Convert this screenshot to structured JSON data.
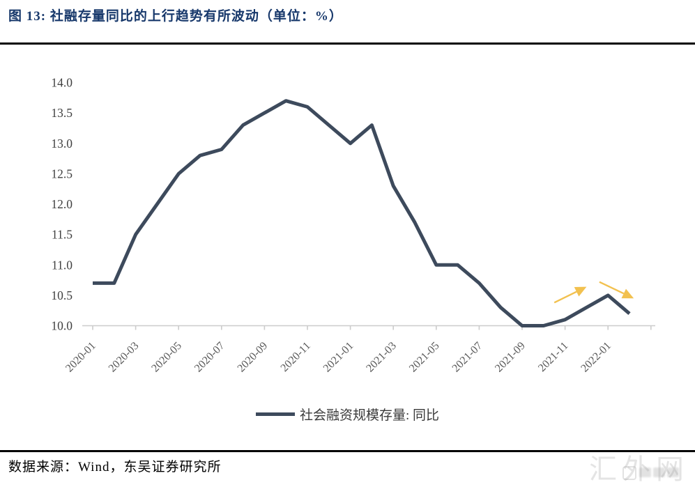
{
  "title": "图 13:  社融存量同比的上行趋势有所波动（单位：%）",
  "chart_data": {
    "type": "line",
    "title": "社融存量同比的上行趋势有所波动",
    "unit": "%",
    "x": [
      "2020-01",
      "2020-02",
      "2020-03",
      "2020-04",
      "2020-05",
      "2020-06",
      "2020-07",
      "2020-08",
      "2020-09",
      "2020-10",
      "2020-11",
      "2020-12",
      "2021-01",
      "2021-02",
      "2021-03",
      "2021-04",
      "2021-05",
      "2021-06",
      "2021-07",
      "2021-08",
      "2021-09",
      "2021-10",
      "2021-11",
      "2021-12",
      "2022-01",
      "2022-02"
    ],
    "series": [
      {
        "name": "社会融资规模存量: 同比",
        "values": [
          10.7,
          10.7,
          11.5,
          12.0,
          12.5,
          12.8,
          12.9,
          13.3,
          13.5,
          13.7,
          13.6,
          13.3,
          13.0,
          13.3,
          12.3,
          11.7,
          11.0,
          11.0,
          10.7,
          10.3,
          10.0,
          10.0,
          10.1,
          10.3,
          10.5,
          10.2
        ]
      }
    ],
    "ylim": [
      10.0,
      14.0
    ],
    "yticks": [
      "14.0",
      "13.5",
      "13.0",
      "12.5",
      "12.0",
      "11.5",
      "11.0",
      "10.5",
      "10.0"
    ],
    "xticks": [
      "2020-01",
      "2020-03",
      "2020-05",
      "2020-07",
      "2020-09",
      "2020-11",
      "2021-01",
      "2021-03",
      "2021-05",
      "2021-07",
      "2021-09",
      "2021-11",
      "2022-01"
    ],
    "grid": false,
    "legend_position": "bottom-center",
    "annotations": [
      {
        "type": "arrow",
        "direction": "up-right",
        "x1": 21.5,
        "y1": 10.38,
        "x2": 23.0,
        "y2": 10.64
      },
      {
        "type": "arrow",
        "direction": "down-right",
        "x1": 23.6,
        "y1": 10.72,
        "x2": 25.2,
        "y2": 10.45
      }
    ]
  },
  "legend": {
    "label": "社会融资规模存量: 同比"
  },
  "source": {
    "text": "数据来源：Wind，东吴证券研究所"
  },
  "watermark": {
    "text": "汇外网",
    "badge_icon": "blurred-logo-badge"
  },
  "colors": {
    "line": "#3d4a5c",
    "arrow": "#f2c14f",
    "title": "#17386b",
    "axis": "#cccccc",
    "tick_label": "#595959",
    "y_label": "#3f3f3f",
    "legend_text": "#3a3a3a",
    "rule": "#000000",
    "watermark": "#cfcfcf"
  }
}
